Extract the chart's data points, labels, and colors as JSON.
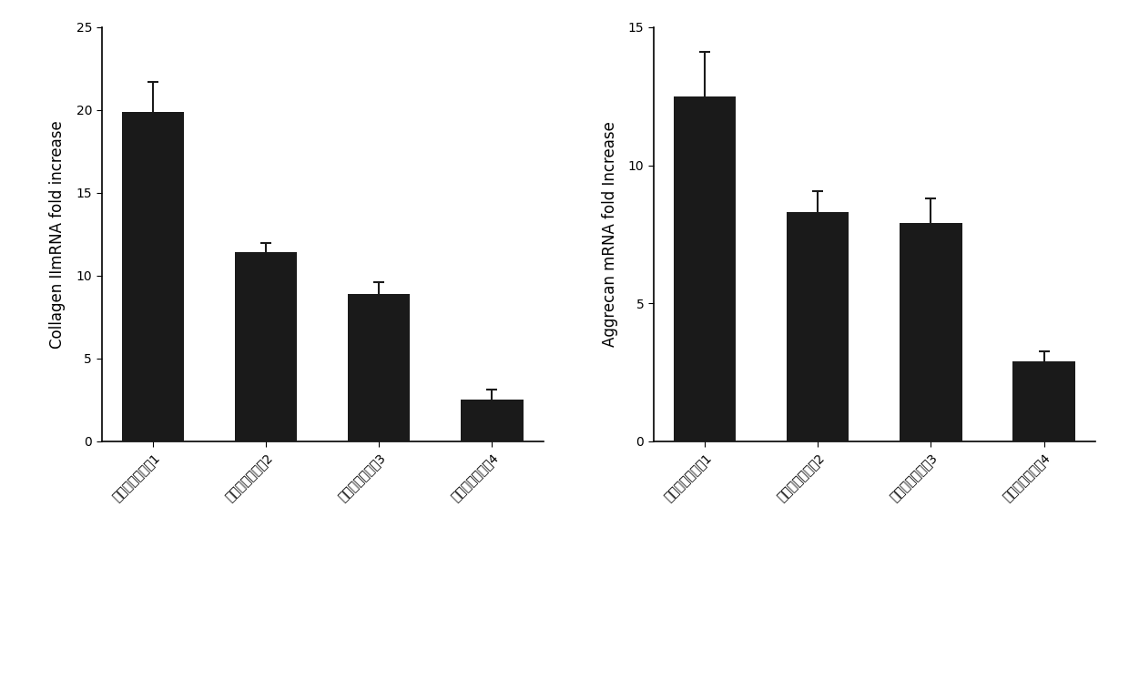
{
  "chart1": {
    "ylabel": "Collagen IImRNA fold increase",
    "values": [
      19.9,
      11.4,
      8.9,
      2.5
    ],
    "errors": [
      1.8,
      0.55,
      0.7,
      0.6
    ],
    "ylim": [
      0,
      25
    ],
    "yticks": [
      0,
      5,
      10,
      15,
      20,
      25
    ]
  },
  "chart2": {
    "ylabel": "Aggrecan mRNA fold Increase",
    "values": [
      12.5,
      8.3,
      7.9,
      2.9
    ],
    "errors": [
      1.6,
      0.75,
      0.9,
      0.35
    ],
    "ylim": [
      0,
      15
    ],
    "yticks": [
      0,
      5,
      10,
      15
    ]
  },
  "categories": [
    "诱导分化培养基1",
    "诱导分化培养基2",
    "诱导分化培养基3",
    "诱导分化培养基4"
  ],
  "bar_color": "#1a1a1a",
  "bar_width": 0.55,
  "background_color": "#ffffff",
  "error_color": "#1a1a1a",
  "capsize": 4,
  "tick_fontsize": 10,
  "ylabel_fontsize": 12,
  "label_rotation": 45
}
